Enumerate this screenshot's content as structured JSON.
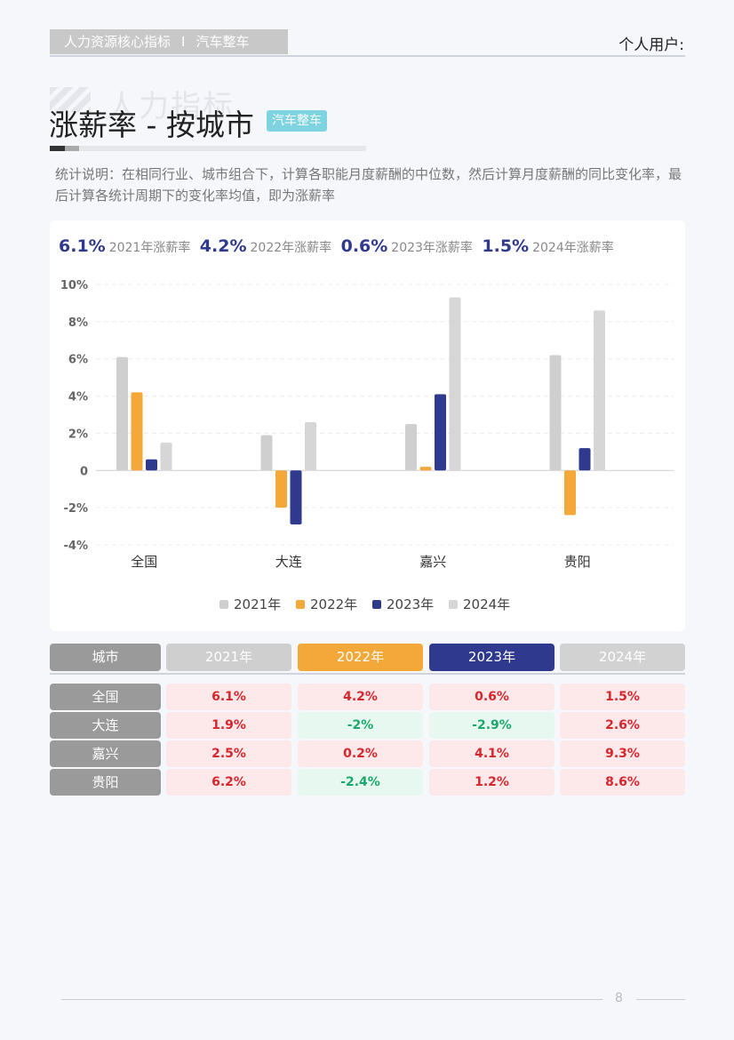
{
  "header": {
    "section": "人力资源核心指标",
    "separator": "I",
    "category": "汽车整车",
    "user_label": "个人用户:"
  },
  "watermark": "人力指标",
  "title": {
    "text": "涨薪率 - 按城市",
    "badge": "汽车整车"
  },
  "description": "统计说明：在相同行业、城市组合下，计算各职能月度薪酬的中位数，然后计算月度薪酬的同比变化率，最后计算各统计周期下的变化率均值，即为涨薪率",
  "summary": [
    {
      "value": "6.1%",
      "label": "2021年涨薪率"
    },
    {
      "value": "4.2%",
      "label": "2022年涨薪率"
    },
    {
      "value": "0.6%",
      "label": "2023年涨薪率"
    },
    {
      "value": "1.5%",
      "label": "2024年涨薪率"
    }
  ],
  "chart_data": {
    "type": "bar",
    "categories": [
      "全国",
      "大连",
      "嘉兴",
      "贵阳"
    ],
    "series": [
      {
        "name": "2021年",
        "values": [
          6.1,
          1.9,
          2.5,
          6.2
        ],
        "color": "#cfcfcf"
      },
      {
        "name": "2022年",
        "values": [
          4.2,
          -2.0,
          0.2,
          -2.4
        ],
        "color": "#f5a83a"
      },
      {
        "name": "2023年",
        "values": [
          0.6,
          -2.9,
          4.1,
          1.2
        ],
        "color": "#2f3a8f"
      },
      {
        "name": "2024年",
        "values": [
          1.5,
          2.6,
          9.3,
          8.6
        ],
        "color": "#d6d6d6"
      }
    ],
    "yticks": [
      "10%",
      "8%",
      "6%",
      "4%",
      "2%",
      "0",
      "-2%",
      "-4%"
    ],
    "ylim": [
      -4,
      10
    ],
    "grid": true,
    "legend": "bottom-center"
  },
  "table": {
    "header": [
      "城市",
      "2021年",
      "2022年",
      "2023年",
      "2024年"
    ],
    "header_colors": [
      "#9a9a9a",
      "#cfcfcf",
      "#f5a83a",
      "#2f3a8f",
      "#d2d2d2"
    ],
    "rows": [
      {
        "city": "全国",
        "values": [
          "6.1%",
          "4.2%",
          "0.6%",
          "1.5%"
        ],
        "signs": [
          "pos",
          "pos",
          "pos",
          "pos"
        ]
      },
      {
        "city": "大连",
        "values": [
          "1.9%",
          "-2%",
          "-2.9%",
          "2.6%"
        ],
        "signs": [
          "pos",
          "neg",
          "neg",
          "pos"
        ]
      },
      {
        "city": "嘉兴",
        "values": [
          "2.5%",
          "0.2%",
          "4.1%",
          "9.3%"
        ],
        "signs": [
          "pos",
          "pos",
          "pos",
          "pos"
        ]
      },
      {
        "city": "贵阳",
        "values": [
          "6.2%",
          "-2.4%",
          "1.2%",
          "8.6%"
        ],
        "signs": [
          "pos",
          "neg",
          "pos",
          "pos"
        ]
      }
    ]
  },
  "footer": {
    "page": "8"
  }
}
